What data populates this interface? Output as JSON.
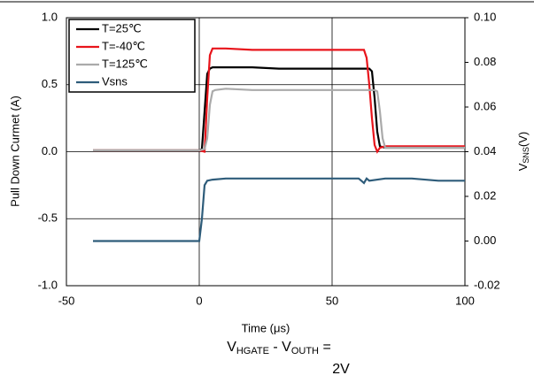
{
  "chart_data": {
    "type": "line",
    "xlabel": "Time (μs)",
    "ylabel": "Pull Down Curmet (A)",
    "y2label": [
      "V",
      "SNS",
      "(V)"
    ],
    "annotation": [
      "V",
      "HGATE",
      " - V",
      "OUTH",
      " =",
      "2V"
    ],
    "xlim": [
      -50,
      100
    ],
    "xticks": [
      -50,
      0,
      50,
      100
    ],
    "ylim": [
      -1,
      1
    ],
    "yticks": [
      {
        "value": -1,
        "label": "-1.0"
      },
      -0.5,
      {
        "value": 0,
        "label": "0.0"
      },
      0.5,
      {
        "value": 1,
        "label": "1.0"
      }
    ],
    "y2lim": [
      -0.02,
      0.1
    ],
    "y2ticks": [
      -0.02,
      {
        "value": 0,
        "label": "0.00"
      },
      0.02,
      0.04,
      0.06,
      0.08,
      {
        "value": 0.1,
        "label": "0.10"
      }
    ],
    "grid": true,
    "legend": "upper left",
    "series": [
      {
        "name": "T=25℃",
        "color": "#000000",
        "x": [
          -40,
          0,
          1,
          2,
          3,
          4,
          5,
          10,
          20,
          30,
          40,
          50,
          60,
          64,
          65,
          66,
          67,
          68,
          70,
          80,
          90,
          100
        ],
        "values": [
          0.01,
          0.01,
          0.02,
          0.3,
          0.58,
          0.62,
          0.63,
          0.63,
          0.63,
          0.62,
          0.62,
          0.62,
          0.62,
          0.62,
          0.6,
          0.4,
          0.15,
          0.04,
          0.03,
          0.03,
          0.03,
          0.03
        ]
      },
      {
        "name": "T=-40℃",
        "color": "#e8141b",
        "x": [
          -40,
          0,
          2,
          3,
          4,
          5,
          10,
          20,
          30,
          40,
          50,
          60,
          62,
          63,
          64,
          65,
          66,
          67,
          68,
          70,
          80,
          90,
          100
        ],
        "values": [
          0.01,
          0.01,
          0,
          0.4,
          0.72,
          0.77,
          0.77,
          0.76,
          0.76,
          0.76,
          0.76,
          0.76,
          0.76,
          0.7,
          0.5,
          0.25,
          0.05,
          0,
          0.03,
          0.04,
          0.04,
          0.04,
          0.04
        ]
      },
      {
        "name": "T=125℃",
        "color": "#aaaaaa",
        "x": [
          -40,
          0,
          2,
          3,
          4,
          5,
          6,
          10,
          20,
          30,
          40,
          50,
          60,
          66,
          67,
          68,
          69,
          70,
          80,
          90,
          100
        ],
        "values": [
          0.01,
          0.01,
          0.02,
          0.1,
          0.35,
          0.45,
          0.46,
          0.47,
          0.46,
          0.46,
          0.46,
          0.46,
          0.46,
          0.46,
          0.45,
          0.3,
          0.1,
          0.03,
          0.03,
          0.03,
          0.03
        ]
      },
      {
        "name": "Vsns",
        "color": "#2e5c7a",
        "axis": "y2",
        "x": [
          -40,
          -10,
          0,
          1,
          2,
          3,
          5,
          10,
          20,
          30,
          40,
          50,
          60,
          61,
          62,
          63,
          64,
          70,
          80,
          90,
          100
        ],
        "values": [
          0,
          0,
          0,
          0.01,
          0.025,
          0.027,
          0.0275,
          0.028,
          0.028,
          0.028,
          0.028,
          0.028,
          0.028,
          0.027,
          0.026,
          0.028,
          0.027,
          0.028,
          0.028,
          0.027,
          0.027
        ]
      }
    ]
  }
}
